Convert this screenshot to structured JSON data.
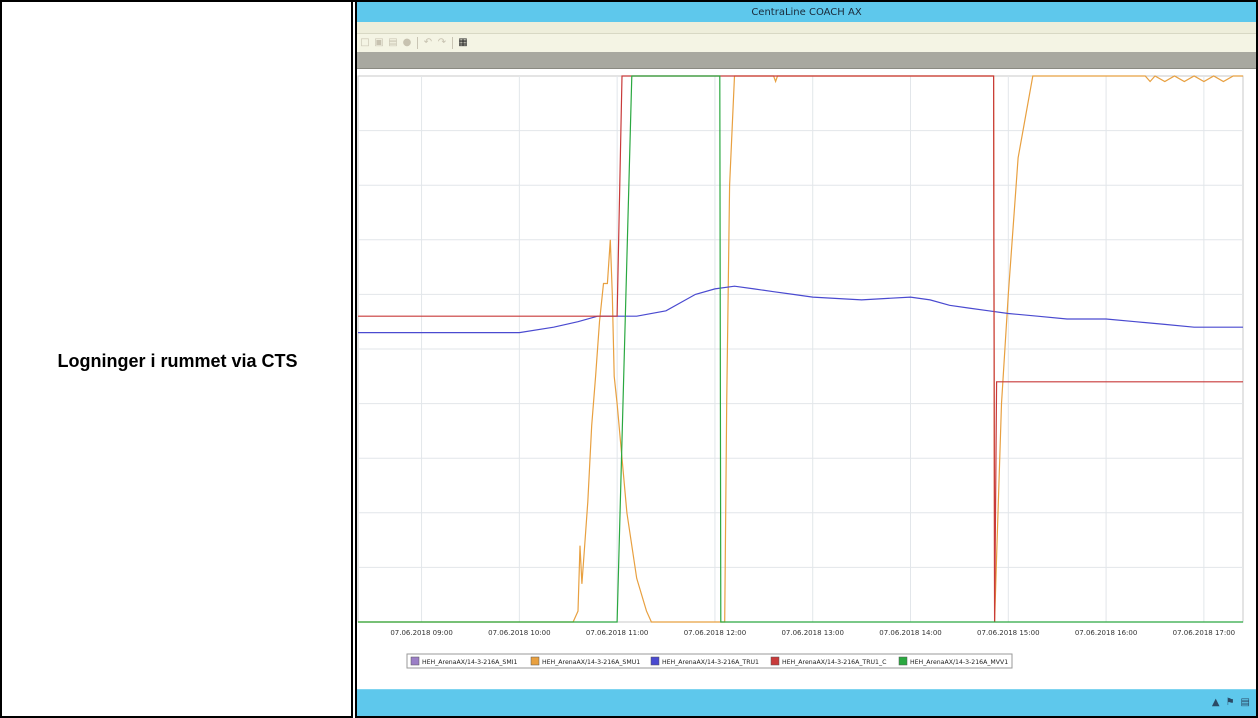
{
  "doc": {
    "left_label": "Logninger i rummet via CTS"
  },
  "app": {
    "title": "CentraLine COACH AX",
    "toolbar": {
      "icons": [
        "new-icon",
        "copy-icon",
        "paste-icon",
        "stop-icon",
        "undo-icon",
        "redo-icon",
        "chart-tool-icon"
      ]
    },
    "status_icons": [
      "arrow-up-icon",
      "flag-icon",
      "save-icon"
    ],
    "colors": {
      "title_bar": "#5ec8ec",
      "status_bar": "#5ec8ec"
    }
  },
  "chart_data": {
    "type": "line",
    "title": "",
    "xlabel": "",
    "ylabel": "",
    "x_ticks": [
      "07.06.2018 09:00",
      "07.06.2018 10:00",
      "07.06.2018 11:00",
      "07.06.2018 12:00",
      "07.06.2018 13:00",
      "07.06.2018 14:00",
      "07.06.2018 15:00",
      "07.06.2018 16:00",
      "07.06.2018 17:00"
    ],
    "x_range_hours": [
      8.35,
      17.4
    ],
    "y_range": [
      0,
      100
    ],
    "grid": true,
    "legend_position": "bottom",
    "series": [
      {
        "name": "HEH_ArenaAX/14-3-216A_SMI1",
        "color": "#9b7fc6",
        "points": []
      },
      {
        "name": "HEH_ArenaAX/14-3-216A_SMU1",
        "color": "#e8a040",
        "points": [
          [
            8.35,
            0
          ],
          [
            10.55,
            0
          ],
          [
            10.6,
            2
          ],
          [
            10.62,
            14
          ],
          [
            10.64,
            7
          ],
          [
            10.66,
            12
          ],
          [
            10.7,
            22
          ],
          [
            10.74,
            36
          ],
          [
            10.78,
            45
          ],
          [
            10.82,
            55
          ],
          [
            10.86,
            62
          ],
          [
            10.9,
            62
          ],
          [
            10.93,
            70
          ],
          [
            10.95,
            60
          ],
          [
            10.97,
            45
          ],
          [
            11.0,
            40
          ],
          [
            11.05,
            30
          ],
          [
            11.1,
            20
          ],
          [
            11.2,
            8
          ],
          [
            11.3,
            2
          ],
          [
            11.35,
            0
          ],
          [
            12.1,
            0
          ],
          [
            12.12,
            40
          ],
          [
            12.15,
            80
          ],
          [
            12.2,
            100
          ],
          [
            12.6,
            100
          ],
          [
            12.62,
            99
          ],
          [
            12.64,
            100
          ],
          [
            14.85,
            100
          ],
          [
            14.86,
            0
          ],
          [
            14.88,
            12
          ],
          [
            14.93,
            40
          ],
          [
            15.0,
            60
          ],
          [
            15.1,
            85
          ],
          [
            15.25,
            100
          ],
          [
            16.4,
            100
          ],
          [
            16.45,
            99
          ],
          [
            16.5,
            100
          ],
          [
            16.6,
            99
          ],
          [
            16.7,
            100
          ],
          [
            16.8,
            99
          ],
          [
            16.9,
            100
          ],
          [
            17.0,
            99
          ],
          [
            17.1,
            100
          ],
          [
            17.2,
            99
          ],
          [
            17.3,
            100
          ],
          [
            17.4,
            100
          ]
        ]
      },
      {
        "name": "HEH_ArenaAX/14-3-216A_TRU1",
        "color": "#4a4ad0",
        "points": [
          [
            8.35,
            53
          ],
          [
            10.0,
            53
          ],
          [
            10.35,
            54
          ],
          [
            10.6,
            55
          ],
          [
            10.8,
            56
          ],
          [
            11.0,
            56
          ],
          [
            11.2,
            56
          ],
          [
            11.5,
            57
          ],
          [
            11.8,
            60
          ],
          [
            12.0,
            61
          ],
          [
            12.2,
            61.5
          ],
          [
            12.4,
            61
          ],
          [
            12.6,
            60.5
          ],
          [
            12.8,
            60
          ],
          [
            13.0,
            59.5
          ],
          [
            13.5,
            59
          ],
          [
            13.8,
            59.3
          ],
          [
            14.0,
            59.5
          ],
          [
            14.2,
            59
          ],
          [
            14.4,
            58
          ],
          [
            14.6,
            57.5
          ],
          [
            14.8,
            57
          ],
          [
            15.0,
            56.5
          ],
          [
            15.3,
            56
          ],
          [
            15.6,
            55.5
          ],
          [
            16.0,
            55.5
          ],
          [
            16.3,
            55
          ],
          [
            16.6,
            54.5
          ],
          [
            16.9,
            54
          ],
          [
            17.2,
            54
          ],
          [
            17.4,
            54
          ]
        ]
      },
      {
        "name": "HEH_ArenaAX/14-3-216A_TRU1_C",
        "color": "#c83a3a",
        "points": [
          [
            8.35,
            56
          ],
          [
            10.95,
            56
          ],
          [
            11.0,
            56
          ],
          [
            11.05,
            100
          ],
          [
            12.1,
            100
          ],
          [
            14.85,
            100
          ],
          [
            14.86,
            0
          ],
          [
            14.88,
            44
          ],
          [
            17.4,
            44
          ]
        ]
      },
      {
        "name": "HEH_ArenaAX/14-3-216A_MVV1",
        "color": "#2aa840",
        "points": [
          [
            8.35,
            0
          ],
          [
            11.0,
            0
          ],
          [
            11.15,
            100
          ],
          [
            12.05,
            100
          ],
          [
            12.06,
            0
          ],
          [
            17.4,
            0
          ]
        ]
      }
    ]
  }
}
